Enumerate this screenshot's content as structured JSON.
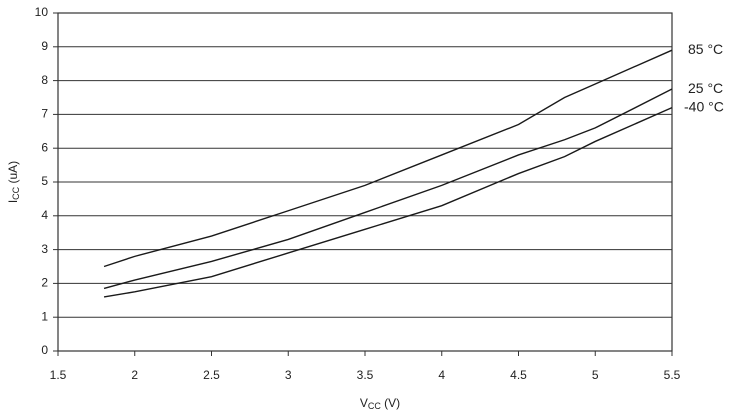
{
  "chart_data": {
    "type": "line",
    "xlabel": [
      "V",
      "CC",
      " (V)"
    ],
    "ylabel": [
      "I",
      "CC",
      " (uA)"
    ],
    "x": [
      1.8,
      2.0,
      2.5,
      3.0,
      3.5,
      4.0,
      4.5,
      4.8,
      5.0,
      5.5
    ],
    "series": [
      {
        "name": "85 °C",
        "color": "#1a1a1a",
        "values": [
          2.5,
          2.8,
          3.4,
          4.15,
          4.9,
          5.8,
          6.7,
          7.5,
          7.9,
          8.9
        ]
      },
      {
        "name": "25 °C",
        "color": "#1a1a1a",
        "values": [
          1.85,
          2.1,
          2.65,
          3.3,
          4.1,
          4.9,
          5.8,
          6.25,
          6.6,
          7.75
        ]
      },
      {
        "name": "-40 °C",
        "color": "#1a1a1a",
        "values": [
          1.6,
          1.75,
          2.2,
          2.9,
          3.6,
          4.3,
          5.25,
          5.75,
          6.2,
          7.2
        ]
      }
    ],
    "xlim": [
      1.5,
      5.5
    ],
    "xticks": [
      1.5,
      2,
      2.5,
      3,
      3.5,
      4,
      4.5,
      5,
      5.5
    ],
    "ylim": [
      0,
      10
    ],
    "yticks": [
      0,
      1,
      2,
      3,
      4,
      5,
      6,
      7,
      8,
      9,
      10
    ],
    "grid": true
  }
}
